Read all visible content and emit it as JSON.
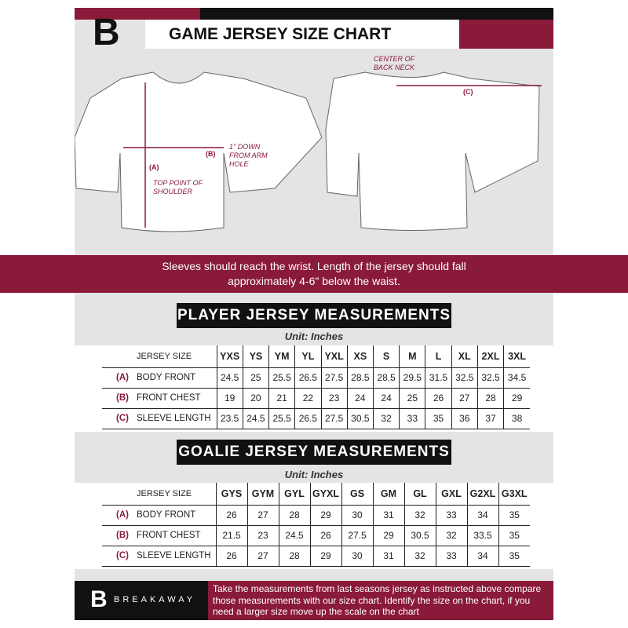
{
  "header": {
    "title": "GAME JERSEY SIZE CHART",
    "logo_letter": "B"
  },
  "diagram": {
    "label_a": "(A)",
    "label_b": "(B)",
    "label_c": "(C)",
    "note_a": "TOP POINT OF SHOULDER",
    "note_b": "1\" DOWN FROM ARM HOLE",
    "note_c": "CENTER OF BACK NECK"
  },
  "banner": {
    "line1": "Sleeves should reach the wrist. Length of the jersey should fall",
    "line2": "approximately 4-6\" below the waist."
  },
  "player": {
    "title": "PLAYER JERSEY MEASUREMENTS",
    "unit": "Unit: Inches",
    "size_label": "JERSEY SIZE",
    "sizes": [
      "YXS",
      "YS",
      "YM",
      "YL",
      "YXL",
      "XS",
      "S",
      "M",
      "L",
      "XL",
      "2XL",
      "3XL"
    ],
    "rows": [
      {
        "letter": "(A)",
        "name": "BODY FRONT",
        "values": [
          "24.5",
          "25",
          "25.5",
          "26.5",
          "27.5",
          "28.5",
          "28.5",
          "29.5",
          "31.5",
          "32.5",
          "32.5",
          "34.5"
        ]
      },
      {
        "letter": "(B)",
        "name": "FRONT CHEST",
        "values": [
          "19",
          "20",
          "21",
          "22",
          "23",
          "24",
          "24",
          "25",
          "26",
          "27",
          "28",
          "29"
        ]
      },
      {
        "letter": "(C)",
        "name": "SLEEVE LENGTH",
        "values": [
          "23.5",
          "24.5",
          "25.5",
          "26.5",
          "27.5",
          "30.5",
          "32",
          "33",
          "35",
          "36",
          "37",
          "38"
        ]
      }
    ]
  },
  "goalie": {
    "title": "GOALIE JERSEY MEASUREMENTS",
    "unit": "Unit: Inches",
    "size_label": "JERSEY SIZE",
    "sizes": [
      "GYS",
      "GYM",
      "GYL",
      "GYXL",
      "GS",
      "GM",
      "GL",
      "GXL",
      "G2XL",
      "G3XL"
    ],
    "rows": [
      {
        "letter": "(A)",
        "name": "BODY FRONT",
        "values": [
          "26",
          "27",
          "28",
          "29",
          "30",
          "31",
          "32",
          "33",
          "34",
          "35"
        ]
      },
      {
        "letter": "(B)",
        "name": "FRONT CHEST",
        "values": [
          "21.5",
          "23",
          "24.5",
          "26",
          "27.5",
          "29",
          "30.5",
          "32",
          "33.5",
          "35"
        ]
      },
      {
        "letter": "(C)",
        "name": "SLEEVE LENGTH",
        "values": [
          "26",
          "27",
          "28",
          "29",
          "30",
          "31",
          "32",
          "33",
          "34",
          "35"
        ]
      }
    ]
  },
  "footer": {
    "brand": "BREAKAWAY",
    "text": "Take the measurements from last seasons jersey as instructed above compare those measurements  with our size chart. Identify the size on the chart, if you need a larger size move up the scale on the chart"
  },
  "colors": {
    "maroon": "#8a1a3a",
    "black": "#111111",
    "background": "#e4e4e4"
  }
}
